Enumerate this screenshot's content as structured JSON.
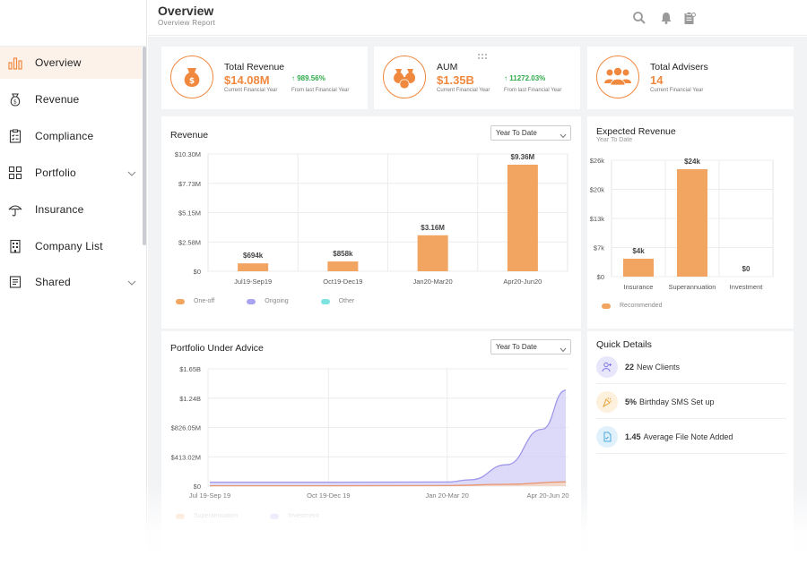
{
  "header": {
    "title": "Overview",
    "subtitle": "Overview Report",
    "icons": [
      "search-icon",
      "bell-icon",
      "clipboard-icon"
    ]
  },
  "sidebar": {
    "items": [
      {
        "label": "Overview",
        "icon": "bar-chart-icon",
        "active": true
      },
      {
        "label": "Revenue",
        "icon": "money-bag-icon"
      },
      {
        "label": "Compliance",
        "icon": "checklist-icon"
      },
      {
        "label": "Portfolio",
        "icon": "grid-icon",
        "expandable": true
      },
      {
        "label": "Insurance",
        "icon": "umbrella-icon"
      },
      {
        "label": "Company List",
        "icon": "building-icon"
      },
      {
        "label": "Shared",
        "icon": "document-icon",
        "expandable": true
      }
    ]
  },
  "stats": {
    "revenue": {
      "title": "Total Revenue",
      "value": "$14.08M",
      "caption": "Current Financial Year",
      "change": "989.56%",
      "change_caption": "From last Financial Year"
    },
    "aum": {
      "title": "AUM",
      "value": "$1.35B",
      "caption": "Current Financial Year",
      "change": "11272.03%",
      "change_caption": "From last Financial Year"
    },
    "advisers": {
      "title": "Total Advisers",
      "value": "14",
      "caption": "Current Financial Year"
    }
  },
  "revenue_card": {
    "title": "Revenue",
    "period": "Year To Date",
    "legend": [
      "One-off",
      "Ongoing",
      "Other"
    ]
  },
  "expected_card": {
    "title": "Expected Revenue",
    "subtitle": "Year To Date",
    "legend": [
      "Recommended"
    ]
  },
  "portfolio_card": {
    "title": "Portfolio Under Advice",
    "period": "Year To Date",
    "legend": [
      "Superannuation",
      "Investment"
    ]
  },
  "quick_details": {
    "title": "Quick Details",
    "rows": [
      {
        "value": "22",
        "label": "New Clients",
        "icon": "add-user-icon"
      },
      {
        "value": "5%",
        "label": "Birthday SMS Set up",
        "icon": "party-icon"
      },
      {
        "value": "1.45",
        "label": "Average File Note Added",
        "icon": "file-note-icon"
      }
    ]
  },
  "colors": {
    "accent": "#f0883e",
    "bar": "#f2a561",
    "ongoing": "#a9a3f0",
    "other": "#7fe3e0",
    "positive": "#2eaa4a"
  },
  "chart_data": [
    {
      "type": "bar",
      "title": "Revenue",
      "categories": [
        "Jul19-Sep19",
        "Oct19-Dec19",
        "Jan20-Mar20",
        "Apr20-Jun20"
      ],
      "series": [
        {
          "name": "One-off",
          "values": [
            694,
            858,
            3160,
            9360
          ],
          "labels": [
            "$694k",
            "$858k",
            "$3.16M",
            "$9.36M"
          ]
        }
      ],
      "units": "thousands",
      "yticks": [
        "$0",
        "$2.58M",
        "$5.15M",
        "$7.73M",
        "$10.30M"
      ],
      "ylim": [
        0,
        10300
      ]
    },
    {
      "type": "bar",
      "title": "Expected Revenue",
      "categories": [
        "Insurance",
        "Superannuation",
        "Investment"
      ],
      "series": [
        {
          "name": "Recommended",
          "values": [
            4,
            24,
            0
          ],
          "labels": [
            "$4k",
            "$24k",
            "$0"
          ]
        }
      ],
      "yticks": [
        "$0",
        "$7k",
        "$13k",
        "$20k",
        "$26k"
      ],
      "ylim": [
        0,
        26
      ]
    },
    {
      "type": "area",
      "title": "Portfolio Under Advice",
      "x": [
        "Jul 19-Sep 19",
        "Oct 19-Dec 19",
        "Jan 20-Mar 20",
        "Apr 20-Jun 20"
      ],
      "yticks": [
        "$0",
        "$413.02M",
        "$826.05M",
        "$1.24B",
        "$1.65B"
      ],
      "ylim": [
        0,
        1650
      ],
      "series": [
        {
          "name": "Investment",
          "points": [
            [
              0,
              55
            ],
            [
              1,
              55
            ],
            [
              2,
              58
            ],
            [
              2.2,
              90
            ],
            [
              2.5,
              300
            ],
            [
              2.8,
              800
            ],
            [
              3,
              1350
            ]
          ]
        },
        {
          "name": "Superannuation",
          "points": [
            [
              0,
              5
            ],
            [
              1,
              5
            ],
            [
              2,
              8
            ],
            [
              2.5,
              25
            ],
            [
              3,
              60
            ]
          ]
        }
      ]
    }
  ]
}
